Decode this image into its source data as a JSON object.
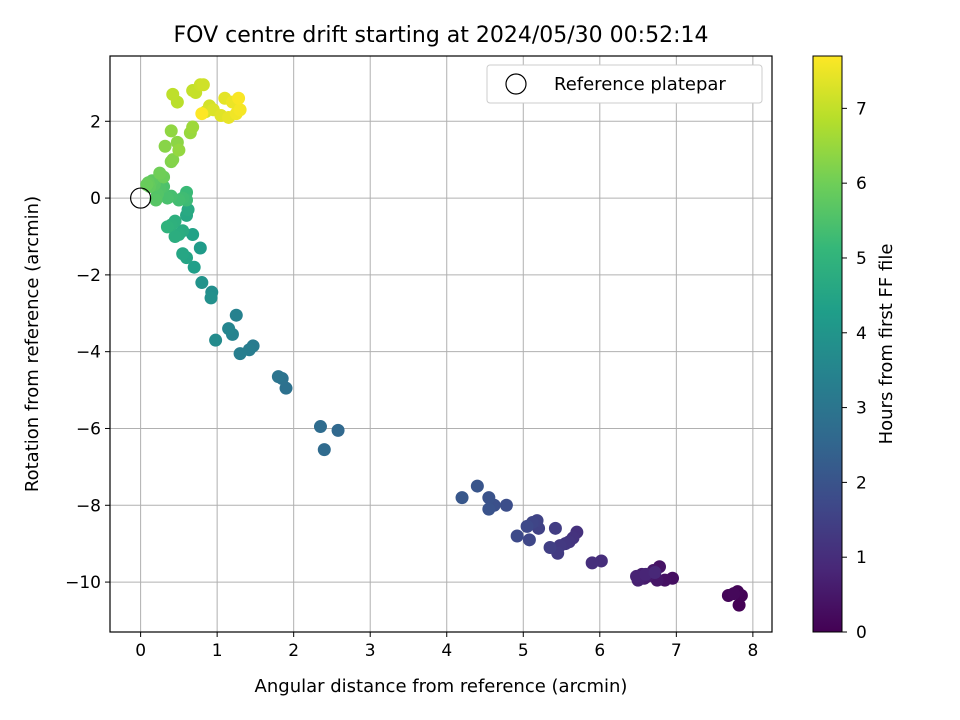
{
  "chart_data": {
    "type": "scatter",
    "title": "FOV centre drift starting at 2024/05/30 00:52:14",
    "xlabel": "Angular distance from reference (arcmin)",
    "ylabel": "Rotation from reference (arcmin)",
    "xlim": [
      -0.4,
      8.25
    ],
    "ylim": [
      -11.3,
      3.7
    ],
    "xticks": [
      0,
      1,
      2,
      3,
      4,
      5,
      6,
      7,
      8
    ],
    "yticks": [
      -10,
      -8,
      -6,
      -4,
      -2,
      0,
      2
    ],
    "grid": true,
    "legend": {
      "placement": "top-right",
      "entries": [
        "Reference platepar"
      ]
    },
    "reference_point": {
      "x": 0,
      "y": 0,
      "marker": "hollow-circle",
      "color": "#000000"
    },
    "colorbar": {
      "label": "Hours from first FF file",
      "range": [
        0,
        7.7
      ],
      "ticks": [
        0,
        1,
        2,
        3,
        4,
        5,
        6,
        7
      ],
      "colormap": "viridis",
      "colors": [
        "#440154",
        "#482878",
        "#3e4989",
        "#31688e",
        "#26828e",
        "#1f9e89",
        "#35b779",
        "#6ece58",
        "#b5de2b",
        "#fde725"
      ]
    },
    "points": [
      [
        7.82,
        -10.6,
        0.02
      ],
      [
        7.85,
        -10.35,
        0.05
      ],
      [
        7.8,
        -10.25,
        0.08
      ],
      [
        7.68,
        -10.35,
        0.1
      ],
      [
        7.75,
        -10.3,
        0.15
      ],
      [
        6.95,
        -9.9,
        0.3
      ],
      [
        6.85,
        -9.95,
        0.35
      ],
      [
        6.78,
        -9.6,
        0.4
      ],
      [
        6.75,
        -9.95,
        0.45
      ],
      [
        6.7,
        -9.7,
        0.5
      ],
      [
        6.62,
        -9.85,
        0.55
      ],
      [
        6.58,
        -9.9,
        0.6
      ],
      [
        6.55,
        -9.8,
        0.65
      ],
      [
        6.5,
        -9.95,
        0.7
      ],
      [
        6.48,
        -9.85,
        0.75
      ],
      [
        6.6,
        -9.8,
        0.8
      ],
      [
        6.72,
        -9.75,
        0.85
      ],
      [
        6.02,
        -9.45,
        1.0
      ],
      [
        5.9,
        -9.5,
        1.05
      ],
      [
        5.7,
        -8.7,
        1.1
      ],
      [
        5.65,
        -8.85,
        1.15
      ],
      [
        5.6,
        -8.95,
        1.2
      ],
      [
        5.55,
        -9.0,
        1.25
      ],
      [
        5.48,
        -9.05,
        1.3
      ],
      [
        5.45,
        -9.25,
        1.35
      ],
      [
        5.42,
        -8.6,
        1.4
      ],
      [
        5.35,
        -9.1,
        1.45
      ],
      [
        5.2,
        -8.6,
        1.5
      ],
      [
        5.18,
        -8.4,
        1.55
      ],
      [
        5.12,
        -8.45,
        1.6
      ],
      [
        5.08,
        -8.9,
        1.65
      ],
      [
        5.05,
        -8.55,
        1.7
      ],
      [
        4.92,
        -8.8,
        1.75
      ],
      [
        4.78,
        -8.0,
        1.85
      ],
      [
        4.62,
        -8.0,
        1.9
      ],
      [
        4.55,
        -7.8,
        1.95
      ],
      [
        4.55,
        -8.1,
        2.0
      ],
      [
        4.4,
        -7.5,
        2.05
      ],
      [
        4.2,
        -7.8,
        2.1
      ],
      [
        2.58,
        -6.05,
        2.6
      ],
      [
        2.4,
        -6.55,
        2.65
      ],
      [
        2.35,
        -5.95,
        2.7
      ],
      [
        1.9,
        -4.95,
        2.85
      ],
      [
        1.85,
        -4.7,
        2.9
      ],
      [
        1.8,
        -4.65,
        2.95
      ],
      [
        1.47,
        -3.85,
        3.2
      ],
      [
        1.42,
        -3.95,
        3.25
      ],
      [
        1.3,
        -4.05,
        3.3
      ],
      [
        1.25,
        -3.05,
        3.4
      ],
      [
        1.2,
        -3.55,
        3.45
      ],
      [
        1.15,
        -3.4,
        3.5
      ],
      [
        0.98,
        -3.7,
        3.7
      ],
      [
        0.93,
        -2.45,
        3.8
      ],
      [
        0.92,
        -2.6,
        3.85
      ],
      [
        0.8,
        -2.2,
        3.95
      ],
      [
        0.78,
        -1.3,
        4.2
      ],
      [
        0.7,
        -1.8,
        4.3
      ],
      [
        0.68,
        -0.95,
        4.4
      ],
      [
        0.6,
        -1.55,
        4.5
      ],
      [
        0.55,
        -1.45,
        4.55
      ],
      [
        0.6,
        -0.45,
        4.6
      ],
      [
        0.62,
        -0.3,
        4.65
      ],
      [
        0.55,
        -0.85,
        4.7
      ],
      [
        0.5,
        -0.95,
        4.75
      ],
      [
        0.45,
        -1.0,
        4.8
      ],
      [
        0.45,
        -0.6,
        4.85
      ],
      [
        0.4,
        -0.7,
        4.9
      ],
      [
        0.35,
        -0.75,
        4.95
      ],
      [
        0.6,
        0.15,
        5.2
      ],
      [
        0.6,
        -0.05,
        5.25
      ],
      [
        0.55,
        0.0,
        5.3
      ],
      [
        0.5,
        -0.05,
        5.35
      ],
      [
        0.4,
        0.05,
        5.4
      ],
      [
        0.35,
        0.0,
        5.45
      ],
      [
        0.3,
        0.3,
        5.5
      ],
      [
        0.25,
        0.25,
        5.55
      ],
      [
        0.22,
        0.1,
        5.6
      ],
      [
        0.2,
        -0.05,
        5.65
      ],
      [
        0.18,
        0.35,
        5.7
      ],
      [
        0.15,
        0.45,
        5.75
      ],
      [
        0.12,
        0.3,
        5.8
      ],
      [
        0.1,
        0.4,
        5.85
      ],
      [
        0.08,
        0.35,
        5.9
      ],
      [
        0.3,
        0.55,
        5.95
      ],
      [
        0.25,
        0.65,
        6.0
      ],
      [
        0.4,
        0.95,
        6.2
      ],
      [
        0.42,
        1.0,
        6.25
      ],
      [
        0.32,
        1.35,
        6.3
      ],
      [
        0.48,
        1.45,
        6.35
      ],
      [
        0.4,
        1.75,
        6.4
      ],
      [
        0.5,
        1.25,
        6.45
      ],
      [
        0.65,
        1.7,
        6.5
      ],
      [
        0.68,
        1.85,
        6.55
      ],
      [
        0.48,
        2.5,
        6.9
      ],
      [
        0.42,
        2.7,
        6.95
      ],
      [
        0.68,
        2.8,
        7.0
      ],
      [
        0.72,
        2.75,
        7.05
      ],
      [
        0.78,
        2.95,
        7.1
      ],
      [
        0.82,
        2.95,
        7.15
      ],
      [
        0.9,
        2.4,
        7.2
      ],
      [
        0.85,
        2.25,
        7.25
      ],
      [
        0.95,
        2.3,
        7.3
      ],
      [
        1.05,
        2.15,
        7.35
      ],
      [
        1.1,
        2.6,
        7.4
      ],
      [
        1.15,
        2.1,
        7.45
      ],
      [
        1.2,
        2.5,
        7.5
      ],
      [
        1.25,
        2.2,
        7.55
      ],
      [
        1.3,
        2.3,
        7.6
      ],
      [
        1.28,
        2.6,
        7.65
      ],
      [
        0.8,
        2.2,
        7.7
      ]
    ]
  }
}
